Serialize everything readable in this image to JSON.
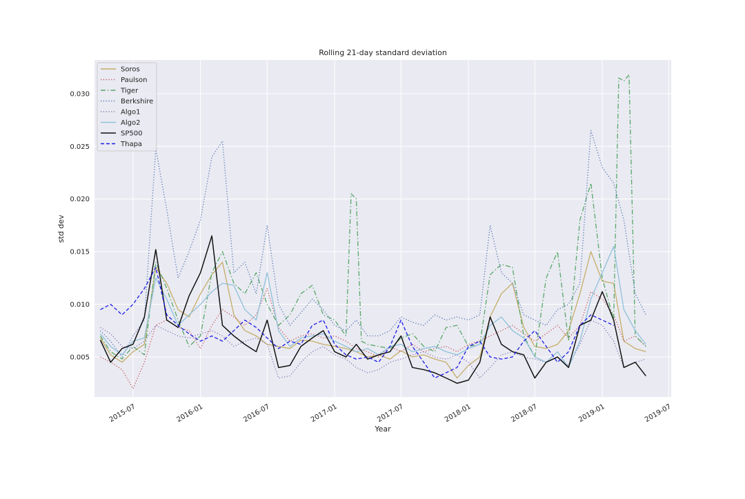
{
  "chart_data": {
    "type": "line",
    "title": "Rolling 21-day standard deviation",
    "xlabel": "Year",
    "ylabel": "std dev",
    "x_range": [
      "2015-03-18",
      "2019-07-08"
    ],
    "ylim": [
      0.0012,
      0.0332
    ],
    "x_ticks": [
      "2015-07",
      "2016-01",
      "2016-07",
      "2017-01",
      "2017-07",
      "2018-01",
      "2018-07",
      "2019-01",
      "2019-07"
    ],
    "y_ticks": [
      "0.005",
      "0.010",
      "0.015",
      "0.020",
      "0.025",
      "0.030"
    ],
    "grid": true,
    "legend_position": "top-left",
    "series": [
      {
        "name": "Soros",
        "color": "#c4ad66",
        "style": "solid",
        "x": [
          "2015-04-03",
          "2015-05-01",
          "2015-06-01",
          "2015-07-01",
          "2015-08-01",
          "2015-09-01",
          "2015-10-01",
          "2015-11-01",
          "2015-12-01",
          "2016-01-01",
          "2016-02-01",
          "2016-03-01",
          "2016-04-01",
          "2016-05-01",
          "2016-06-01",
          "2016-07-01",
          "2016-08-01",
          "2016-09-01",
          "2016-10-01",
          "2016-11-01",
          "2016-12-01",
          "2017-01-01",
          "2017-02-01",
          "2017-03-01",
          "2017-04-01",
          "2017-05-01",
          "2017-06-01",
          "2017-07-01",
          "2017-08-01",
          "2017-09-01",
          "2017-10-01",
          "2017-11-01",
          "2017-12-01",
          "2018-01-01",
          "2018-02-01",
          "2018-03-01",
          "2018-04-01",
          "2018-05-01",
          "2018-06-01",
          "2018-07-01",
          "2018-08-01",
          "2018-09-01",
          "2018-10-01",
          "2018-11-01",
          "2018-12-01",
          "2019-01-01",
          "2019-02-01",
          "2019-03-01",
          "2019-04-01",
          "2019-04-30"
        ],
        "y": [
          0.0068,
          0.0052,
          0.0045,
          0.0055,
          0.0062,
          0.0135,
          0.012,
          0.0095,
          0.0088,
          0.011,
          0.0128,
          0.014,
          0.009,
          0.0075,
          0.007,
          0.0062,
          0.006,
          0.0058,
          0.0066,
          0.0065,
          0.0062,
          0.006,
          0.0058,
          0.0055,
          0.005,
          0.0052,
          0.0048,
          0.0056,
          0.005,
          0.0052,
          0.0048,
          0.0045,
          0.003,
          0.0042,
          0.005,
          0.0088,
          0.011,
          0.012,
          0.0078,
          0.006,
          0.0058,
          0.0062,
          0.0075,
          0.011,
          0.015,
          0.0122,
          0.012,
          0.0065,
          0.0058,
          0.0055
        ]
      },
      {
        "name": "Paulson",
        "color": "#c44e52",
        "style": "dotted",
        "x": [
          "2015-04-03",
          "2015-05-01",
          "2015-06-01",
          "2015-07-01",
          "2015-08-01",
          "2015-09-01",
          "2015-10-01",
          "2015-11-01",
          "2015-12-01",
          "2016-01-01",
          "2016-02-01",
          "2016-03-01",
          "2016-04-01",
          "2016-05-01",
          "2016-06-01",
          "2016-07-01",
          "2016-08-01",
          "2016-09-01",
          "2016-10-01",
          "2016-11-01",
          "2016-12-01",
          "2017-01-01",
          "2017-02-01",
          "2017-03-01",
          "2017-04-01",
          "2017-05-01",
          "2017-06-01",
          "2017-07-01",
          "2017-08-01",
          "2017-09-01",
          "2017-10-01",
          "2017-11-01",
          "2017-12-01",
          "2018-01-01",
          "2018-02-01",
          "2018-03-01",
          "2018-04-01",
          "2018-05-01",
          "2018-06-01",
          "2018-07-01",
          "2018-08-01",
          "2018-09-01",
          "2018-10-01",
          "2018-11-01",
          "2018-12-01",
          "2019-01-01",
          "2019-02-01",
          "2019-03-01",
          "2019-04-01",
          "2019-04-30"
        ],
        "y": [
          0.005,
          0.0045,
          0.0038,
          0.002,
          0.0045,
          0.008,
          0.0085,
          0.0078,
          0.0075,
          0.0058,
          0.008,
          0.0095,
          0.0088,
          0.008,
          0.009,
          0.0115,
          0.0078,
          0.0065,
          0.007,
          0.0072,
          0.0068,
          0.007,
          0.0065,
          0.0058,
          0.0055,
          0.005,
          0.006,
          0.0055,
          0.0062,
          0.0055,
          0.0058,
          0.006,
          0.0055,
          0.0062,
          0.0065,
          0.007,
          0.0075,
          0.008,
          0.0072,
          0.0065,
          0.0072,
          0.008,
          0.0068,
          0.008,
          0.0112,
          0.0105,
          0.009,
          0.0065,
          0.007,
          0.006
        ]
      },
      {
        "name": "Tiger",
        "color": "#55a868",
        "style": "dashdot",
        "x": [
          "2015-04-03",
          "2015-05-01",
          "2015-06-01",
          "2015-07-01",
          "2015-08-01",
          "2015-09-01",
          "2015-10-01",
          "2015-11-01",
          "2015-12-01",
          "2016-01-01",
          "2016-02-01",
          "2016-03-01",
          "2016-04-01",
          "2016-05-01",
          "2016-06-01",
          "2016-07-01",
          "2016-08-01",
          "2016-09-01",
          "2016-10-01",
          "2016-11-01",
          "2016-12-01",
          "2017-01-01",
          "2017-02-01",
          "2017-02-15",
          "2017-03-01",
          "2017-03-15",
          "2017-04-01",
          "2017-05-01",
          "2017-06-01",
          "2017-07-01",
          "2017-08-01",
          "2017-09-01",
          "2017-10-01",
          "2017-11-01",
          "2017-12-01",
          "2018-01-01",
          "2018-02-01",
          "2018-03-01",
          "2018-04-01",
          "2018-05-01",
          "2018-06-01",
          "2018-07-01",
          "2018-08-01",
          "2018-09-01",
          "2018-10-01",
          "2018-11-01",
          "2018-12-01",
          "2019-01-01",
          "2019-02-01",
          "2019-02-15",
          "2019-03-01",
          "2019-03-15",
          "2019-04-01",
          "2019-04-30"
        ],
        "y": [
          0.007,
          0.0055,
          0.0048,
          0.006,
          0.0052,
          0.014,
          0.0115,
          0.0085,
          0.006,
          0.007,
          0.013,
          0.015,
          0.012,
          0.011,
          0.013,
          0.01,
          0.008,
          0.009,
          0.011,
          0.0118,
          0.009,
          0.0085,
          0.007,
          0.0205,
          0.02,
          0.0065,
          0.0062,
          0.006,
          0.0058,
          0.0068,
          0.0072,
          0.006,
          0.0055,
          0.0078,
          0.008,
          0.006,
          0.0062,
          0.0128,
          0.0138,
          0.0135,
          0.007,
          0.005,
          0.0125,
          0.015,
          0.0065,
          0.018,
          0.0215,
          0.0125,
          0.0085,
          0.0315,
          0.0312,
          0.0318,
          0.007,
          0.006
        ]
      },
      {
        "name": "Berkshire",
        "color": "#4c72b0",
        "style": "dotted",
        "x": [
          "2015-04-03",
          "2015-05-01",
          "2015-06-01",
          "2015-07-01",
          "2015-08-01",
          "2015-09-01",
          "2015-10-01",
          "2015-11-01",
          "2015-12-01",
          "2016-01-01",
          "2016-02-01",
          "2016-03-01",
          "2016-04-01",
          "2016-05-01",
          "2016-06-01",
          "2016-07-01",
          "2016-08-01",
          "2016-09-01",
          "2016-10-01",
          "2016-11-01",
          "2016-12-01",
          "2017-01-01",
          "2017-02-01",
          "2017-03-01",
          "2017-04-01",
          "2017-05-01",
          "2017-06-01",
          "2017-07-01",
          "2017-08-01",
          "2017-09-01",
          "2017-10-01",
          "2017-11-01",
          "2017-12-01",
          "2018-01-01",
          "2018-02-01",
          "2018-03-01",
          "2018-04-01",
          "2018-05-01",
          "2018-06-01",
          "2018-07-01",
          "2018-08-01",
          "2018-09-01",
          "2018-10-01",
          "2018-11-01",
          "2018-12-01",
          "2019-01-01",
          "2019-02-01",
          "2019-03-01",
          "2019-04-01",
          "2019-04-30"
        ],
        "y": [
          0.0075,
          0.0065,
          0.005,
          0.007,
          0.0085,
          0.0248,
          0.019,
          0.0125,
          0.015,
          0.018,
          0.024,
          0.0255,
          0.013,
          0.014,
          0.011,
          0.0175,
          0.01,
          0.008,
          0.0092,
          0.0105,
          0.0095,
          0.008,
          0.0075,
          0.0085,
          0.007,
          0.007,
          0.0075,
          0.0088,
          0.0083,
          0.008,
          0.009,
          0.0085,
          0.0088,
          0.0085,
          0.009,
          0.0175,
          0.013,
          0.012,
          0.009,
          0.0085,
          0.008,
          0.0095,
          0.01,
          0.012,
          0.0265,
          0.023,
          0.0215,
          0.018,
          0.011,
          0.009
        ]
      },
      {
        "name": "Algo1",
        "color": "#8172b2",
        "style": "dotted",
        "x": [
          "2015-04-03",
          "2015-05-01",
          "2015-06-01",
          "2015-07-01",
          "2015-08-01",
          "2015-09-01",
          "2015-10-01",
          "2015-11-01",
          "2015-12-01",
          "2016-01-01",
          "2016-02-01",
          "2016-03-01",
          "2016-04-01",
          "2016-05-01",
          "2016-06-01",
          "2016-07-01",
          "2016-08-01",
          "2016-09-01",
          "2016-10-01",
          "2016-11-01",
          "2016-12-01",
          "2017-01-01",
          "2017-02-01",
          "2017-03-01",
          "2017-04-01",
          "2017-05-01",
          "2017-06-01",
          "2017-07-01",
          "2017-08-01",
          "2017-09-01",
          "2017-10-01",
          "2017-11-01",
          "2017-12-01",
          "2018-01-01",
          "2018-02-01",
          "2018-03-01",
          "2018-04-01",
          "2018-05-01",
          "2018-06-01",
          "2018-07-01",
          "2018-08-01",
          "2018-09-01",
          "2018-10-01",
          "2018-11-01",
          "2018-12-01",
          "2019-01-01",
          "2019-02-01",
          "2019-03-01",
          "2019-04-01",
          "2019-04-30"
        ],
        "y": [
          0.0078,
          0.0072,
          0.006,
          0.0058,
          0.0065,
          0.008,
          0.0075,
          0.007,
          0.0068,
          0.0072,
          0.0075,
          0.007,
          0.006,
          0.0065,
          0.0068,
          0.0062,
          0.003,
          0.0032,
          0.0045,
          0.0055,
          0.006,
          0.0052,
          0.0048,
          0.004,
          0.0035,
          0.0038,
          0.0045,
          0.0048,
          0.0052,
          0.0055,
          0.005,
          0.0048,
          0.0052,
          0.0045,
          0.003,
          0.004,
          0.0052,
          0.0055,
          0.005,
          0.0048,
          0.0045,
          0.005,
          0.0042,
          0.0062,
          0.0085,
          0.008,
          0.0065,
          0.004,
          0.0045,
          0.0048
        ]
      },
      {
        "name": "Algo2",
        "color": "#8ec1da",
        "style": "solid",
        "x": [
          "2015-04-03",
          "2015-05-01",
          "2015-06-01",
          "2015-07-01",
          "2015-08-01",
          "2015-09-01",
          "2015-10-01",
          "2015-11-01",
          "2015-12-01",
          "2016-01-01",
          "2016-02-01",
          "2016-03-01",
          "2016-04-01",
          "2016-05-01",
          "2016-06-01",
          "2016-07-01",
          "2016-08-01",
          "2016-09-01",
          "2016-10-01",
          "2016-11-01",
          "2016-12-01",
          "2017-01-01",
          "2017-02-01",
          "2017-03-01",
          "2017-04-01",
          "2017-05-01",
          "2017-06-01",
          "2017-07-01",
          "2017-08-01",
          "2017-09-01",
          "2017-10-01",
          "2017-11-01",
          "2017-12-01",
          "2018-01-01",
          "2018-02-01",
          "2018-03-01",
          "2018-04-01",
          "2018-05-01",
          "2018-06-01",
          "2018-07-01",
          "2018-08-01",
          "2018-09-01",
          "2018-10-01",
          "2018-11-01",
          "2018-12-01",
          "2019-01-01",
          "2019-02-01",
          "2019-03-01",
          "2019-04-01",
          "2019-04-30"
        ],
        "y": [
          0.0072,
          0.006,
          0.0052,
          0.0065,
          0.0068,
          0.0125,
          0.0105,
          0.008,
          0.009,
          0.01,
          0.0112,
          0.012,
          0.0118,
          0.0095,
          0.0085,
          0.013,
          0.0075,
          0.006,
          0.0068,
          0.007,
          0.0072,
          0.0065,
          0.006,
          0.0055,
          0.0058,
          0.0052,
          0.006,
          0.0062,
          0.0055,
          0.0058,
          0.006,
          0.0055,
          0.0052,
          0.0058,
          0.0062,
          0.008,
          0.0088,
          0.0075,
          0.0068,
          0.005,
          0.0045,
          0.0055,
          0.004,
          0.0065,
          0.0105,
          0.013,
          0.0155,
          0.0095,
          0.0075,
          0.0062
        ]
      },
      {
        "name": "SP500",
        "color": "#111111",
        "style": "solid",
        "x": [
          "2015-04-03",
          "2015-05-01",
          "2015-06-01",
          "2015-07-01",
          "2015-08-01",
          "2015-09-01",
          "2015-10-01",
          "2015-11-01",
          "2015-12-01",
          "2016-01-01",
          "2016-02-01",
          "2016-03-01",
          "2016-04-01",
          "2016-05-01",
          "2016-06-01",
          "2016-07-01",
          "2016-08-01",
          "2016-09-01",
          "2016-10-01",
          "2016-11-01",
          "2016-12-01",
          "2017-01-01",
          "2017-02-01",
          "2017-03-01",
          "2017-04-01",
          "2017-05-01",
          "2017-06-01",
          "2017-07-01",
          "2017-08-01",
          "2017-09-01",
          "2017-10-01",
          "2017-11-01",
          "2017-12-01",
          "2018-01-01",
          "2018-02-01",
          "2018-03-01",
          "2018-04-01",
          "2018-05-01",
          "2018-06-01",
          "2018-07-01",
          "2018-08-01",
          "2018-09-01",
          "2018-10-01",
          "2018-11-01",
          "2018-12-01",
          "2019-01-01",
          "2019-02-01",
          "2019-03-01",
          "2019-04-01",
          "2019-04-30"
        ],
        "y": [
          0.0066,
          0.0045,
          0.0058,
          0.0062,
          0.0088,
          0.0152,
          0.0085,
          0.0078,
          0.0108,
          0.013,
          0.0165,
          0.008,
          0.007,
          0.0062,
          0.0055,
          0.0085,
          0.004,
          0.0042,
          0.006,
          0.0068,
          0.0075,
          0.0055,
          0.005,
          0.0062,
          0.0048,
          0.0052,
          0.0055,
          0.007,
          0.004,
          0.0038,
          0.0035,
          0.003,
          0.0025,
          0.0028,
          0.0045,
          0.0088,
          0.0062,
          0.0055,
          0.0052,
          0.003,
          0.0045,
          0.005,
          0.004,
          0.008,
          0.0085,
          0.0112,
          0.0085,
          0.004,
          0.0045,
          0.0032
        ]
      },
      {
        "name": "Thapa",
        "color": "#1a1ae6",
        "style": "dashed",
        "x": [
          "2015-04-03",
          "2015-05-01",
          "2015-06-01",
          "2015-07-01",
          "2015-08-01",
          "2015-09-01",
          "2015-10-01",
          "2015-11-01",
          "2015-12-01",
          "2016-01-01",
          "2016-02-01",
          "2016-03-01",
          "2016-04-01",
          "2016-05-01",
          "2016-06-01",
          "2016-07-01",
          "2016-08-01",
          "2016-09-01",
          "2016-10-01",
          "2016-11-01",
          "2016-12-01",
          "2017-01-01",
          "2017-02-01",
          "2017-03-01",
          "2017-04-01",
          "2017-05-01",
          "2017-06-01",
          "2017-07-01",
          "2017-08-01",
          "2017-09-01",
          "2017-10-01",
          "2017-11-01",
          "2017-12-01",
          "2018-01-01",
          "2018-02-01",
          "2018-03-01",
          "2018-04-01",
          "2018-05-01",
          "2018-06-01",
          "2018-07-01",
          "2018-08-01",
          "2018-09-01",
          "2018-10-01",
          "2018-11-01",
          "2018-12-01",
          "2019-01-01",
          "2019-02-01"
        ],
        "y": [
          0.0095,
          0.01,
          0.009,
          0.01,
          0.0115,
          0.0135,
          0.009,
          0.008,
          0.0072,
          0.0065,
          0.007,
          0.0065,
          0.0075,
          0.0085,
          0.0078,
          0.0068,
          0.0058,
          0.0065,
          0.0062,
          0.008,
          0.0085,
          0.0062,
          0.0052,
          0.0048,
          0.005,
          0.0045,
          0.006,
          0.0085,
          0.006,
          0.0045,
          0.003,
          0.0035,
          0.004,
          0.006,
          0.0065,
          0.005,
          0.0048,
          0.005,
          0.0065,
          0.0075,
          0.006,
          0.0045,
          0.0055,
          0.008,
          0.009,
          0.0085,
          0.008
        ]
      }
    ]
  }
}
